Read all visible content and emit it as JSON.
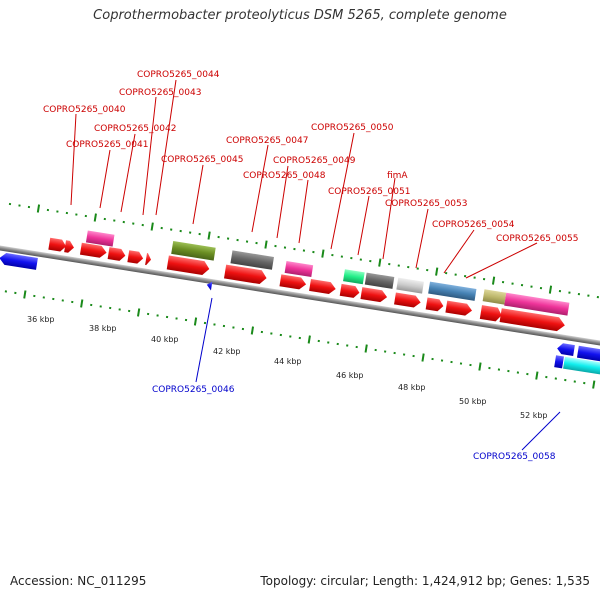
{
  "title": "Coprothermobacter proteolyticus DSM 5265, complete genome",
  "footer": {
    "accession": "Accession: NC_011295",
    "summary": "Topology: circular; Length: 1,424,912 bp; Genes: 1,535"
  },
  "colors": {
    "backbone": "#999999",
    "dots": "#1a8a1a",
    "forward_label": "#cc0000",
    "reverse_label": "#0000cc"
  },
  "scale_ticks": [
    "36 kbp",
    "38 kbp",
    "40 kbp",
    "42 kbp",
    "44 kbp",
    "46 kbp",
    "48 kbp",
    "50 kbp",
    "52 kbp"
  ],
  "forward_gene_labels": [
    "COPRO5265_0044",
    "COPRO5265_0043",
    "COPRO5265_0040",
    "COPRO5265_0042",
    "COPRO5265_0041",
    "COPRO5265_0045",
    "COPRO5265_0047",
    "COPRO5265_0050",
    "COPRO5265_0049",
    "COPRO5265_0048",
    "fimA",
    "COPRO5265_0051",
    "COPRO5265_0053",
    "COPRO5265_0054",
    "COPRO5265_0055"
  ],
  "reverse_gene_labels": [
    "COPRO5265_0046",
    "COPRO5265_0058"
  ],
  "feature_colors": {
    "cds": "#ee1111",
    "magenta": "#ee3399",
    "olive": "#6b8e23",
    "dark_gray": "#666666",
    "light_gray": "#cccccc",
    "green": "#22ee88",
    "steel_blue": "#4682b4",
    "khaki": "#bdb76b",
    "blue": "#1111ee",
    "cyan": "#11eeee"
  }
}
